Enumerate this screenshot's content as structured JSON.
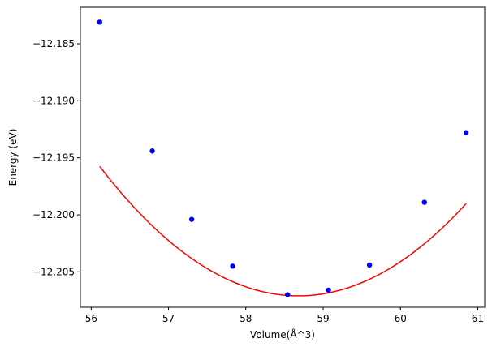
{
  "chart_data": {
    "type": "scatter",
    "title": "",
    "xlabel": "Volume(Å^3)",
    "ylabel": "Energy (eV)",
    "xlim": [
      55.86,
      61.09
    ],
    "ylim": [
      -12.2081,
      -12.1818
    ],
    "x_ticks": [
      56,
      57,
      58,
      59,
      60,
      61
    ],
    "y_ticks": [
      -12.185,
      -12.19,
      -12.195,
      -12.2,
      -12.205
    ],
    "x_tick_labels": [
      "56",
      "57",
      "58",
      "59",
      "60",
      "61"
    ],
    "y_tick_labels": [
      "−12.185",
      "−12.190",
      "−12.195",
      "−12.200",
      "−12.205"
    ],
    "grid": false,
    "series": [
      {
        "kind": "points",
        "color": "#0000ff",
        "x": [
          56.11,
          56.79,
          57.3,
          57.83,
          58.54,
          59.07,
          59.6,
          60.31,
          60.85
        ],
        "y": [
          -12.1831,
          -12.1944,
          -12.2004,
          -12.2045,
          -12.207,
          -12.2066,
          -12.2044,
          -12.1989,
          -12.1928
        ]
      },
      {
        "kind": "fit-curve",
        "color": "#ff0000",
        "fit": {
          "form": "quadratic",
          "x_min": 58.68,
          "y_min": -12.2071,
          "a": 0.001718
        }
      }
    ]
  }
}
